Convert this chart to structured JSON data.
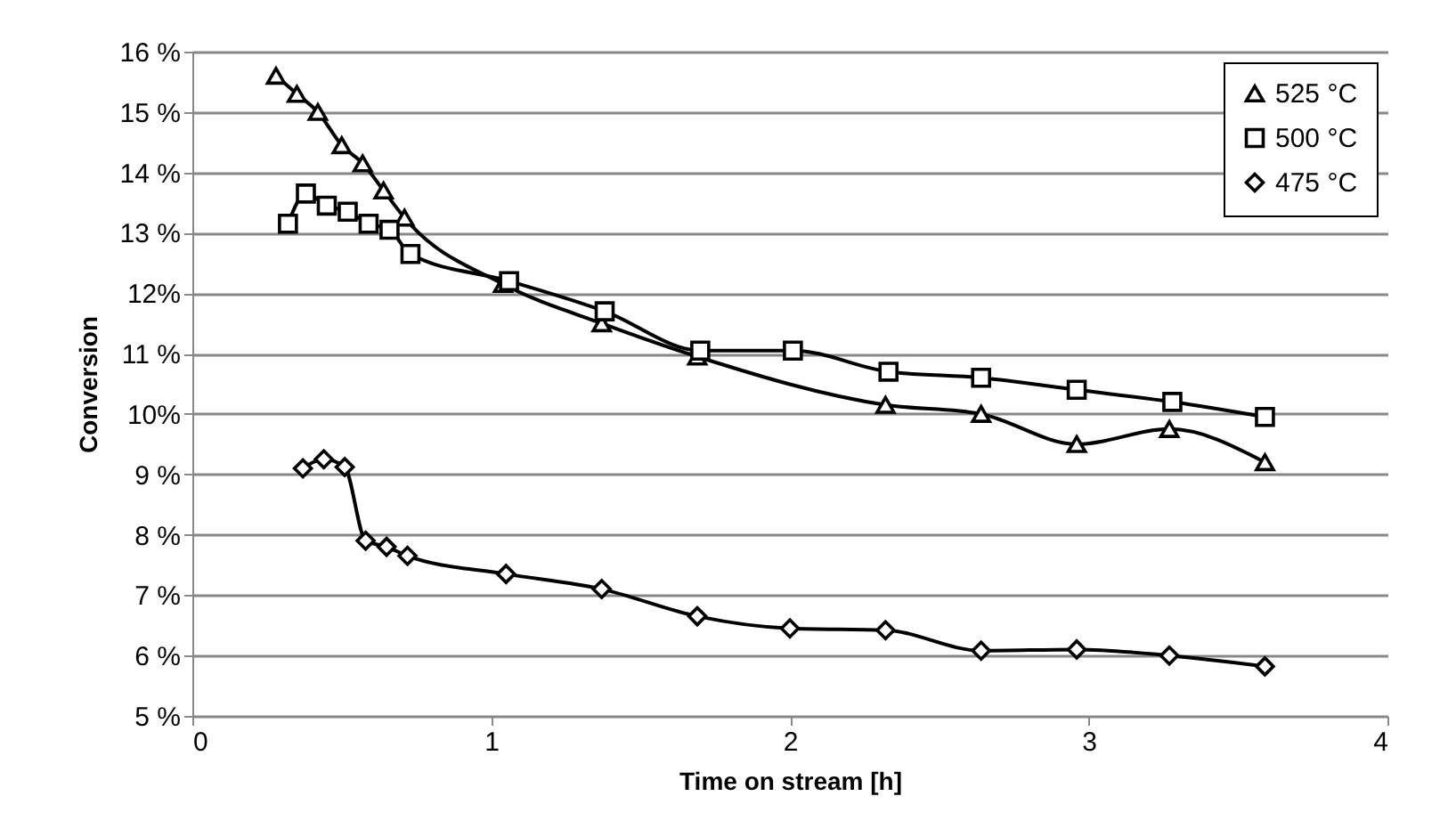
{
  "chart_data": {
    "type": "line",
    "xlabel": "Time on stream [h]",
    "ylabel": "Conversion",
    "xlim": [
      0,
      4
    ],
    "xticks": [
      0,
      1,
      2,
      3,
      4
    ],
    "ylim": [
      5,
      16
    ],
    "yticks": [
      {
        "value": 5,
        "label": "5 %"
      },
      {
        "value": 6,
        "label": "6 %"
      },
      {
        "value": 7,
        "label": "7 %"
      },
      {
        "value": 8,
        "label": "8 %"
      },
      {
        "value": 9,
        "label": "9 %"
      },
      {
        "value": 10,
        "label": "10%"
      },
      {
        "value": 11,
        "label": "11 %"
      },
      {
        "value": 12,
        "label": "12%"
      },
      {
        "value": 13,
        "label": "13 %"
      },
      {
        "value": 14,
        "label": "14 %"
      },
      {
        "value": 15,
        "label": "15 %"
      },
      {
        "value": 16,
        "label": "16 %"
      }
    ],
    "grid": "y",
    "legend": "top right",
    "line_style": "solid",
    "series": [
      {
        "name": "525 °C",
        "color": "#000000",
        "marker": "triangle",
        "x": [
          0.28,
          0.35,
          0.42,
          0.5,
          0.57,
          0.64,
          0.71,
          1.04,
          1.37,
          1.69,
          2.32,
          2.64,
          2.96,
          3.27,
          3.59
        ],
        "values": [
          15.6,
          15.3,
          15.0,
          14.45,
          14.15,
          13.7,
          13.25,
          12.15,
          11.5,
          10.95,
          10.15,
          10.0,
          9.5,
          9.75,
          9.2
        ]
      },
      {
        "name": "500 °C",
        "color": "#000000",
        "marker": "square",
        "x": [
          0.32,
          0.38,
          0.45,
          0.52,
          0.59,
          0.66,
          0.73,
          1.06,
          1.38,
          1.7,
          2.01,
          2.33,
          2.64,
          2.96,
          3.28,
          3.59
        ],
        "values": [
          13.15,
          13.65,
          13.45,
          13.35,
          13.15,
          13.05,
          12.65,
          12.2,
          11.7,
          11.05,
          11.05,
          10.7,
          10.6,
          10.4,
          10.2,
          9.95
        ]
      },
      {
        "name": "475 °C",
        "color": "#000000",
        "marker": "diamond",
        "x": [
          0.37,
          0.44,
          0.51,
          0.58,
          0.65,
          0.72,
          1.05,
          1.37,
          1.69,
          2.0,
          2.32,
          2.64,
          2.96,
          3.27,
          3.59
        ],
        "values": [
          9.1,
          9.25,
          9.12,
          7.9,
          7.8,
          7.65,
          7.35,
          7.1,
          6.65,
          6.45,
          6.42,
          6.08,
          6.1,
          6.0,
          5.82
        ]
      }
    ]
  }
}
